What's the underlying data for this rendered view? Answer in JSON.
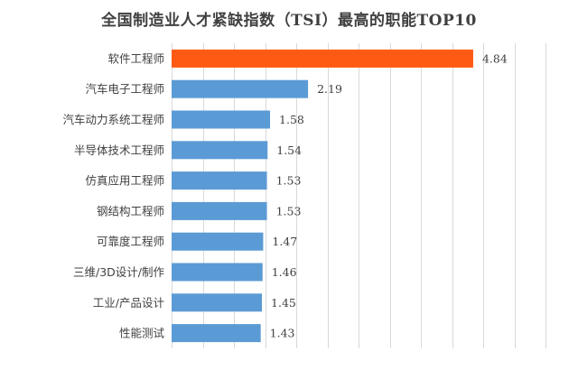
{
  "chart_data": {
    "type": "bar",
    "orientation": "horizontal",
    "title": "全国制造业人才紧缺指数（TSI）最高的职能TOP10",
    "categories": [
      "软件工程师",
      "汽车电子工程师",
      "汽车动力系统工程师",
      "半导体技术工程师",
      "仿真应用工程师",
      "钢结构工程师",
      "可靠度工程师",
      "三维/3D设计/制作",
      "工业/产品设计",
      "性能测试"
    ],
    "values": [
      4.84,
      2.19,
      1.58,
      1.54,
      1.53,
      1.53,
      1.47,
      1.46,
      1.45,
      1.43
    ],
    "value_labels": [
      "4.84",
      "2.19",
      "1.58",
      "1.54",
      "1.53",
      "1.53",
      "1.47",
      "1.46",
      "1.45",
      "1.43"
    ],
    "xlim": [
      0,
      6
    ],
    "grid": true,
    "legend": "none",
    "colors": {
      "default": "#5b9bd5",
      "highlight": "#ff5a14",
      "grid": "#d9d9d9",
      "text": "#404040"
    },
    "highlight_index": 0
  }
}
